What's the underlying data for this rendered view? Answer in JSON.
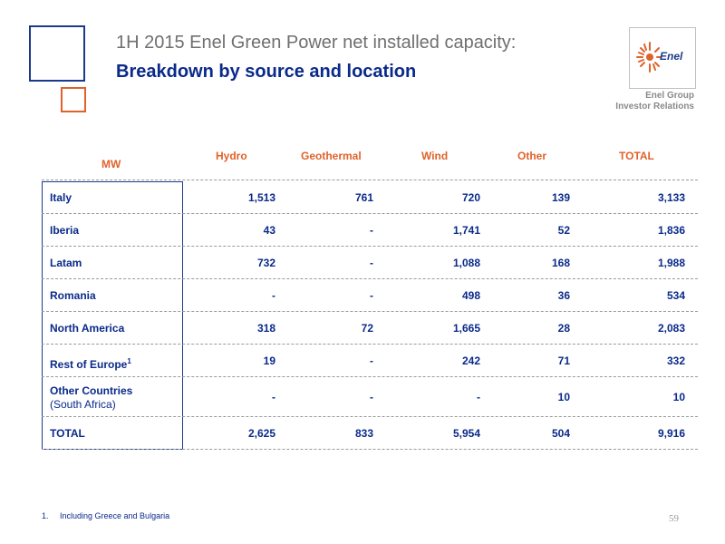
{
  "header": {
    "title": "1H 2015 Enel Green Power net installed capacity:",
    "subtitle": "Breakdown by source and location",
    "logo_text": "Enel",
    "group_line1": "Enel Group",
    "group_line2": "Investor Relations"
  },
  "table": {
    "unit_label": "MW",
    "columns": [
      "Hydro",
      "Geothermal",
      "Wind",
      "Other",
      "TOTAL"
    ],
    "rows": [
      {
        "label": "Italy",
        "label2": "",
        "sup": "",
        "values": [
          "1,513",
          "761",
          "720",
          "139",
          "3,133"
        ]
      },
      {
        "label": "Iberia",
        "label2": "",
        "sup": "",
        "values": [
          "43",
          "-",
          "1,741",
          "52",
          "1,836"
        ]
      },
      {
        "label": "Latam",
        "label2": "",
        "sup": "",
        "values": [
          "732",
          "-",
          "1,088",
          "168",
          "1,988"
        ]
      },
      {
        "label": "Romania",
        "label2": "",
        "sup": "",
        "values": [
          "-",
          "-",
          "498",
          "36",
          "534"
        ]
      },
      {
        "label": "North America",
        "label2": "",
        "sup": "",
        "values": [
          "318",
          "72",
          "1,665",
          "28",
          "2,083"
        ]
      },
      {
        "label": "Rest of Europe",
        "label2": "",
        "sup": "1",
        "values": [
          "19",
          "-",
          "242",
          "71",
          "332"
        ]
      },
      {
        "label": "Other Countries",
        "label2": "(South Africa)",
        "sup": "",
        "values": [
          "-",
          "-",
          "-",
          "10",
          "10"
        ]
      },
      {
        "label": "TOTAL",
        "label2": "",
        "sup": "",
        "values": [
          "2,625",
          "833",
          "5,954",
          "504",
          "9,916"
        ]
      }
    ]
  },
  "footnote": {
    "number": "1.",
    "text": "Including Greece and Bulgaria"
  },
  "page_number": "59",
  "colors": {
    "navy": "#0a2a8a",
    "orange": "#e0622a",
    "gray": "#6f6f6f"
  }
}
